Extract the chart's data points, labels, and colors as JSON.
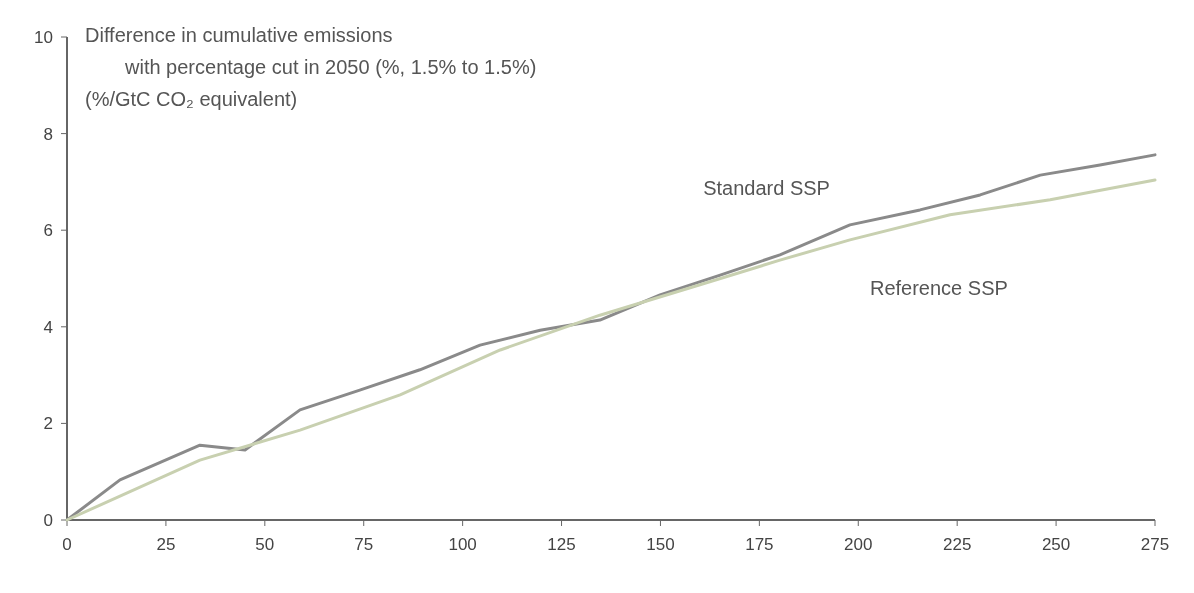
{
  "chart_data": {
    "type": "line",
    "title": "Difference in cumulative emissions",
    "subtitle": "with percentage cut in 2050 (%, 1.5% to 1.5%)\n(%/GtC CO₂ equivalent)",
    "x": [
      0,
      13.4,
      33.6,
      45,
      58.9,
      74,
      89.2,
      104.4,
      119.6,
      134.7,
      149.9,
      165.1,
      180.2,
      197.9,
      215.6,
      230.8,
      246,
      261.1,
      275
    ],
    "series": [
      {
        "name": "Standard SSP",
        "color": "#8a8a8a",
        "values": [
          0,
          0.83,
          1.55,
          1.45,
          2.28,
          2.69,
          3.11,
          3.62,
          3.93,
          4.14,
          4.66,
          5.07,
          5.49,
          6.11,
          6.42,
          6.73,
          7.14,
          7.35,
          7.56
        ]
      },
      {
        "name": "Reference SSP",
        "color": "#c8d0b0",
        "x": [
          0,
          33.6,
          58.9,
          84.2,
          109.5,
          134.7,
          160,
          180.2,
          197.9,
          223.2,
          248.5,
          275
        ],
        "values": [
          0,
          1.24,
          1.86,
          2.59,
          3.52,
          4.24,
          4.87,
          5.38,
          5.8,
          6.32,
          6.63,
          7.04
        ]
      }
    ],
    "xlim": [
      0,
      275
    ],
    "xticks": [
      0,
      25,
      50,
      75,
      100,
      125,
      150,
      175,
      200,
      225,
      250,
      275
    ],
    "ylim": [
      0,
      10
    ],
    "yticks": [
      0,
      2,
      4,
      6,
      8,
      10
    ],
    "grid": false
  }
}
